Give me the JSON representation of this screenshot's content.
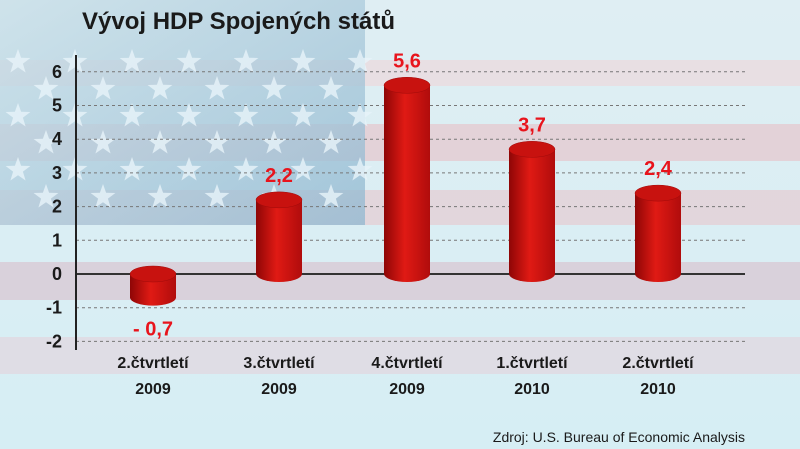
{
  "chart_data": {
    "type": "bar",
    "title": "Vývoj HDP Spojených států",
    "categories": [
      [
        "2.čtvrtletí",
        "2009"
      ],
      [
        "3.čtvrtletí",
        "2009"
      ],
      [
        "4.čtvrtletí",
        "2009"
      ],
      [
        "1.čtvrtletí",
        "2010"
      ],
      [
        "2.čtvrtletí",
        "2010"
      ]
    ],
    "values": [
      -0.7,
      2.2,
      5.6,
      3.7,
      2.4
    ],
    "data_labels": [
      "- 0,7",
      "2,2",
      "5,6",
      "3,7",
      "2,4"
    ],
    "ylim": [
      -2,
      6
    ],
    "yticks": [
      6,
      5,
      4,
      3,
      2,
      1,
      0,
      -1,
      -2
    ],
    "grid": true,
    "xlabel": "",
    "ylabel": "",
    "source": "Zdroj: U.S. Bureau of Economic Analysis",
    "colors": {
      "bar": "#d01010",
      "label": "#e8141c",
      "background_canton": "#9fc3d8",
      "stripe_red": "#e9c8cc"
    }
  }
}
